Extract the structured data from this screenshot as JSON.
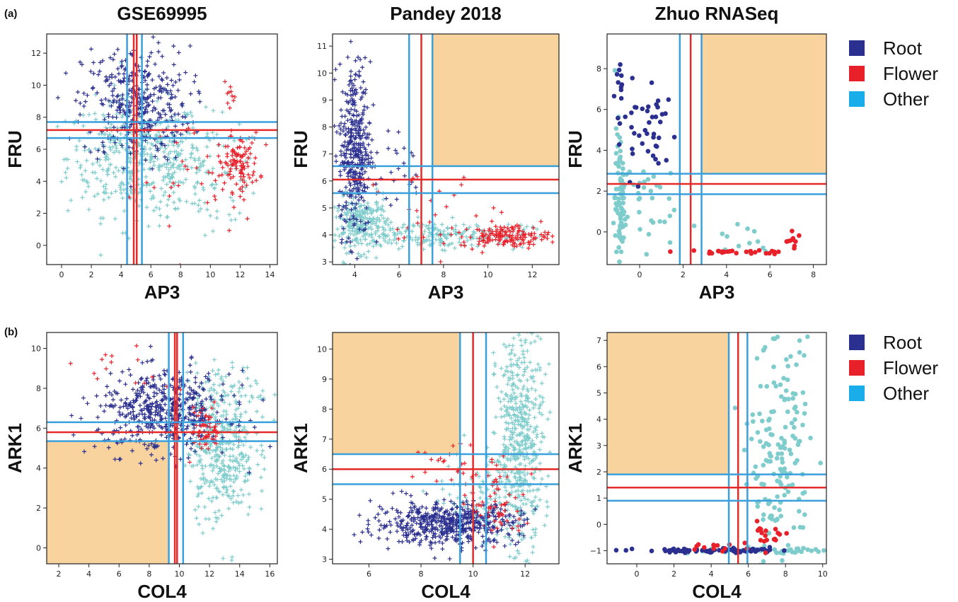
{
  "panel_labels": [
    "(a)",
    "(b)"
  ],
  "column_titles": [
    "GSE69995",
    "Pandey 2018",
    "Zhuo RNASeq"
  ],
  "legend": {
    "items": [
      {
        "label": "Root",
        "color": "#2b2f8f"
      },
      {
        "label": "Flower",
        "color": "#e8202a"
      },
      {
        "label": "Other",
        "color": "#19aeea"
      }
    ]
  },
  "colors": {
    "root": "#2b2f8f",
    "flower": "#e8202a",
    "other_points": "#7fcccc",
    "blue_line": "#3aa0dc",
    "red_line": "#e52a2a",
    "shade": "#f8d39e"
  },
  "chart_data": [
    {
      "type": "scatter",
      "row": "a",
      "title": "GSE69995",
      "xlabel": "AP3",
      "ylabel": "FRU",
      "marker": "plus",
      "xlim": [
        -1,
        14.5
      ],
      "ylim": [
        -1.2,
        13.2
      ],
      "xticks": [
        0,
        2,
        4,
        6,
        8,
        10,
        12,
        14
      ],
      "yticks": [
        0,
        2,
        4,
        6,
        8,
        10,
        12
      ],
      "vlines": [
        {
          "color": "blue",
          "x": 4.4
        },
        {
          "color": "red",
          "x": 4.85
        },
        {
          "color": "red",
          "x": 5.05
        },
        {
          "color": "blue",
          "x": 5.4
        }
      ],
      "hlines": [
        {
          "color": "blue",
          "y": 7.7
        },
        {
          "color": "red",
          "y": 7.2
        },
        {
          "color": "blue",
          "y": 6.7
        }
      ],
      "shade": null,
      "series": [
        {
          "name": "Root",
          "clusters": [
            {
              "cx": 5.0,
              "cy": 8.8,
              "sx": 1.8,
              "sy": 1.8,
              "n": 360
            }
          ]
        },
        {
          "name": "Flower",
          "clusters": [
            {
              "cx": 11.9,
              "cy": 5.2,
              "sx": 0.7,
              "sy": 0.9,
              "n": 110
            },
            {
              "cx": 11.3,
              "cy": 9.1,
              "sx": 0.2,
              "sy": 0.5,
              "n": 10
            },
            {
              "cx": 9.0,
              "cy": 4.0,
              "sx": 2.0,
              "sy": 2.0,
              "n": 30
            }
          ]
        },
        {
          "name": "Other",
          "clusters": [
            {
              "cx": 5.0,
              "cy": 5.5,
              "sx": 2.3,
              "sy": 1.8,
              "n": 420
            },
            {
              "cx": 9.5,
              "cy": 4.5,
              "sx": 2.2,
              "sy": 1.6,
              "n": 120
            }
          ]
        }
      ]
    },
    {
      "type": "scatter",
      "row": "a",
      "title": "Pandey 2018",
      "xlabel": "AP3",
      "ylabel": "FRU",
      "marker": "plus",
      "xlim": [
        3,
        13.2
      ],
      "ylim": [
        2.9,
        11.45
      ],
      "xticks": [
        4,
        6,
        8,
        10,
        12
      ],
      "yticks": [
        3,
        4,
        5,
        6,
        7,
        8,
        9,
        10,
        11
      ],
      "vlines": [
        {
          "color": "blue",
          "x": 6.45
        },
        {
          "color": "red",
          "x": 7.0
        },
        {
          "color": "blue",
          "x": 7.5
        }
      ],
      "hlines": [
        {
          "color": "blue",
          "y": 6.55
        },
        {
          "color": "red",
          "y": 6.05
        },
        {
          "color": "blue",
          "y": 5.55
        }
      ],
      "shade": {
        "x0": 7.5,
        "x1": 13.2,
        "y0": 6.55,
        "y1": 11.45
      },
      "series": [
        {
          "name": "Root",
          "clusters": [
            {
              "cx": 4.0,
              "cy": 7.2,
              "sx": 0.35,
              "sy": 1.6,
              "n": 380
            },
            {
              "cx": 5.5,
              "cy": 6.5,
              "sx": 0.8,
              "sy": 0.9,
              "n": 30
            }
          ]
        },
        {
          "name": "Flower",
          "clusters": [
            {
              "cx": 10.8,
              "cy": 3.95,
              "sx": 1.0,
              "sy": 0.2,
              "n": 150
            },
            {
              "cx": 7.5,
              "cy": 4.8,
              "sx": 1.5,
              "sy": 0.8,
              "n": 30
            }
          ]
        },
        {
          "name": "Other",
          "clusters": [
            {
              "cx": 4.3,
              "cy": 4.4,
              "sx": 0.6,
              "sy": 0.5,
              "n": 260
            },
            {
              "cx": 7.8,
              "cy": 4.0,
              "sx": 2.0,
              "sy": 0.25,
              "n": 200
            }
          ]
        }
      ]
    },
    {
      "type": "scatter",
      "row": "a",
      "title": "Zhuo RNASeq",
      "xlabel": "AP3",
      "ylabel": "FRU",
      "marker": "dot",
      "xlim": [
        -1.5,
        8.6
      ],
      "ylim": [
        -1.6,
        9.7
      ],
      "xticks": [
        0,
        2,
        4,
        6,
        8
      ],
      "yticks": [
        0,
        2,
        4,
        6,
        8
      ],
      "vlines": [
        {
          "color": "blue",
          "x": 1.85
        },
        {
          "color": "red",
          "x": 2.35
        },
        {
          "color": "blue",
          "x": 2.85
        }
      ],
      "hlines": [
        {
          "color": "blue",
          "y": 2.85
        },
        {
          "color": "red",
          "y": 2.35
        },
        {
          "color": "blue",
          "y": 1.85
        }
      ],
      "shade": {
        "x0": 2.85,
        "x1": 8.6,
        "y0": 2.85,
        "y1": 9.7
      },
      "series": [
        {
          "name": "Root",
          "clusters": [
            {
              "cx": 0.2,
              "cy": 5.0,
              "sx": 0.8,
              "sy": 1.2,
              "n": 45
            },
            {
              "cx": -0.9,
              "cy": 8.0,
              "sx": 0.08,
              "sy": 0.8,
              "n": 10
            }
          ]
        },
        {
          "name": "Flower",
          "clusters": [
            {
              "cx": 4.0,
              "cy": -1.0,
              "sx": 1.4,
              "sy": 0.05,
              "n": 25
            },
            {
              "cx": 7.1,
              "cy": -0.5,
              "sx": 0.2,
              "sy": 0.3,
              "n": 10
            }
          ]
        },
        {
          "name": "Other",
          "clusters": [
            {
              "cx": -0.9,
              "cy": 1.5,
              "sx": 0.12,
              "sy": 1.8,
              "n": 90
            },
            {
              "cx": 0.2,
              "cy": 1.5,
              "sx": 0.7,
              "sy": 1.2,
              "n": 30
            },
            {
              "cx": 5.0,
              "cy": -0.4,
              "sx": 1.2,
              "sy": 0.5,
              "n": 12
            }
          ]
        }
      ]
    },
    {
      "type": "scatter",
      "row": "b",
      "title": "GSE69995",
      "xlabel": "COL4",
      "ylabel": "ARK1",
      "marker": "plus",
      "xlim": [
        1.2,
        16.5
      ],
      "ylim": [
        -0.8,
        10.8
      ],
      "xticks": [
        2,
        4,
        6,
        8,
        10,
        12,
        14,
        16
      ],
      "yticks": [
        0,
        2,
        4,
        6,
        8,
        10
      ],
      "vlines": [
        {
          "color": "blue",
          "x": 9.3
        },
        {
          "color": "red",
          "x": 9.7
        },
        {
          "color": "red",
          "x": 9.85
        },
        {
          "color": "blue",
          "x": 10.25
        }
      ],
      "hlines": [
        {
          "color": "blue",
          "y": 6.3
        },
        {
          "color": "red",
          "y": 5.8
        },
        {
          "color": "blue",
          "y": 5.35
        }
      ],
      "shade": {
        "x0": 1.2,
        "x1": 9.3,
        "y0": -0.8,
        "y1": 5.35
      },
      "series": [
        {
          "name": "Root",
          "clusters": [
            {
              "cx": 9.0,
              "cy": 6.8,
              "sx": 2.2,
              "sy": 1.0,
              "n": 500
            }
          ]
        },
        {
          "name": "Flower",
          "clusters": [
            {
              "cx": 11.8,
              "cy": 5.9,
              "sx": 0.5,
              "sy": 0.6,
              "n": 60
            },
            {
              "cx": 6.5,
              "cy": 8.8,
              "sx": 1.5,
              "sy": 0.6,
              "n": 15
            }
          ]
        },
        {
          "name": "Other",
          "clusters": [
            {
              "cx": 12.8,
              "cy": 5.0,
              "sx": 1.1,
              "sy": 1.8,
              "n": 380
            },
            {
              "cx": 13.5,
              "cy": 7.5,
              "sx": 1.2,
              "sy": 0.8,
              "n": 50
            }
          ]
        }
      ]
    },
    {
      "type": "scatter",
      "row": "b",
      "title": "Pandey 2018",
      "xlabel": "COL4",
      "ylabel": "ARK1",
      "marker": "plus",
      "xlim": [
        4.6,
        13.3
      ],
      "ylim": [
        2.85,
        10.55
      ],
      "xticks": [
        6,
        8,
        10,
        12
      ],
      "yticks": [
        3,
        4,
        5,
        6,
        7,
        8,
        9,
        10
      ],
      "vlines": [
        {
          "color": "blue",
          "x": 9.5
        },
        {
          "color": "red",
          "x": 10.0
        },
        {
          "color": "blue",
          "x": 10.5
        }
      ],
      "hlines": [
        {
          "color": "blue",
          "y": 6.5
        },
        {
          "color": "red",
          "y": 6.0
        },
        {
          "color": "blue",
          "y": 5.5
        }
      ],
      "shade": {
        "x0": 4.6,
        "x1": 9.5,
        "y0": 6.5,
        "y1": 10.55
      },
      "series": [
        {
          "name": "Root",
          "clusters": [
            {
              "cx": 9.0,
              "cy": 4.2,
              "sx": 1.4,
              "sy": 0.35,
              "n": 520
            }
          ]
        },
        {
          "name": "Flower",
          "clusters": [
            {
              "cx": 11.0,
              "cy": 4.8,
              "sx": 0.5,
              "sy": 0.6,
              "n": 60
            },
            {
              "cx": 9.2,
              "cy": 6.0,
              "sx": 1.0,
              "sy": 0.6,
              "n": 25
            }
          ]
        },
        {
          "name": "Other",
          "clusters": [
            {
              "cx": 11.8,
              "cy": 7.0,
              "sx": 0.45,
              "sy": 1.8,
              "n": 520
            },
            {
              "cx": 10.5,
              "cy": 5.0,
              "sx": 1.0,
              "sy": 0.9,
              "n": 100
            }
          ]
        }
      ]
    },
    {
      "type": "scatter",
      "row": "b",
      "title": "Zhuo RNASeq",
      "xlabel": "COL4",
      "ylabel": "ARK1",
      "marker": "dot",
      "xlim": [
        -1.6,
        10.2
      ],
      "ylim": [
        -1.5,
        7.3
      ],
      "xticks": [
        0,
        2,
        4,
        6,
        8,
        10
      ],
      "yticks": [
        -1,
        0,
        1,
        2,
        3,
        4,
        5,
        6,
        7
      ],
      "vlines": [
        {
          "color": "blue",
          "x": 4.95
        },
        {
          "color": "red",
          "x": 5.45
        },
        {
          "color": "blue",
          "x": 5.95
        }
      ],
      "hlines": [
        {
          "color": "blue",
          "y": 1.9
        },
        {
          "color": "red",
          "y": 1.4
        },
        {
          "color": "blue",
          "y": 0.9
        }
      ],
      "shade": {
        "x0": -1.6,
        "x1": 4.95,
        "y0": 1.9,
        "y1": 7.3
      },
      "series": [
        {
          "name": "Root",
          "clusters": [
            {
              "cx": 4.5,
              "cy": -1.0,
              "sx": 2.2,
              "sy": 0.04,
              "n": 80
            }
          ]
        },
        {
          "name": "Flower",
          "clusters": [
            {
              "cx": 7.0,
              "cy": -0.4,
              "sx": 0.5,
              "sy": 0.3,
              "n": 20
            },
            {
              "cx": 3.5,
              "cy": -0.85,
              "sx": 1.2,
              "sy": 0.1,
              "n": 12
            }
          ]
        },
        {
          "name": "Other",
          "clusters": [
            {
              "cx": 7.7,
              "cy": 2.5,
              "sx": 0.8,
              "sy": 2.2,
              "n": 170
            },
            {
              "cx": 6.5,
              "cy": -1.0,
              "sx": 1.8,
              "sy": 0.05,
              "n": 60
            }
          ]
        }
      ]
    }
  ]
}
